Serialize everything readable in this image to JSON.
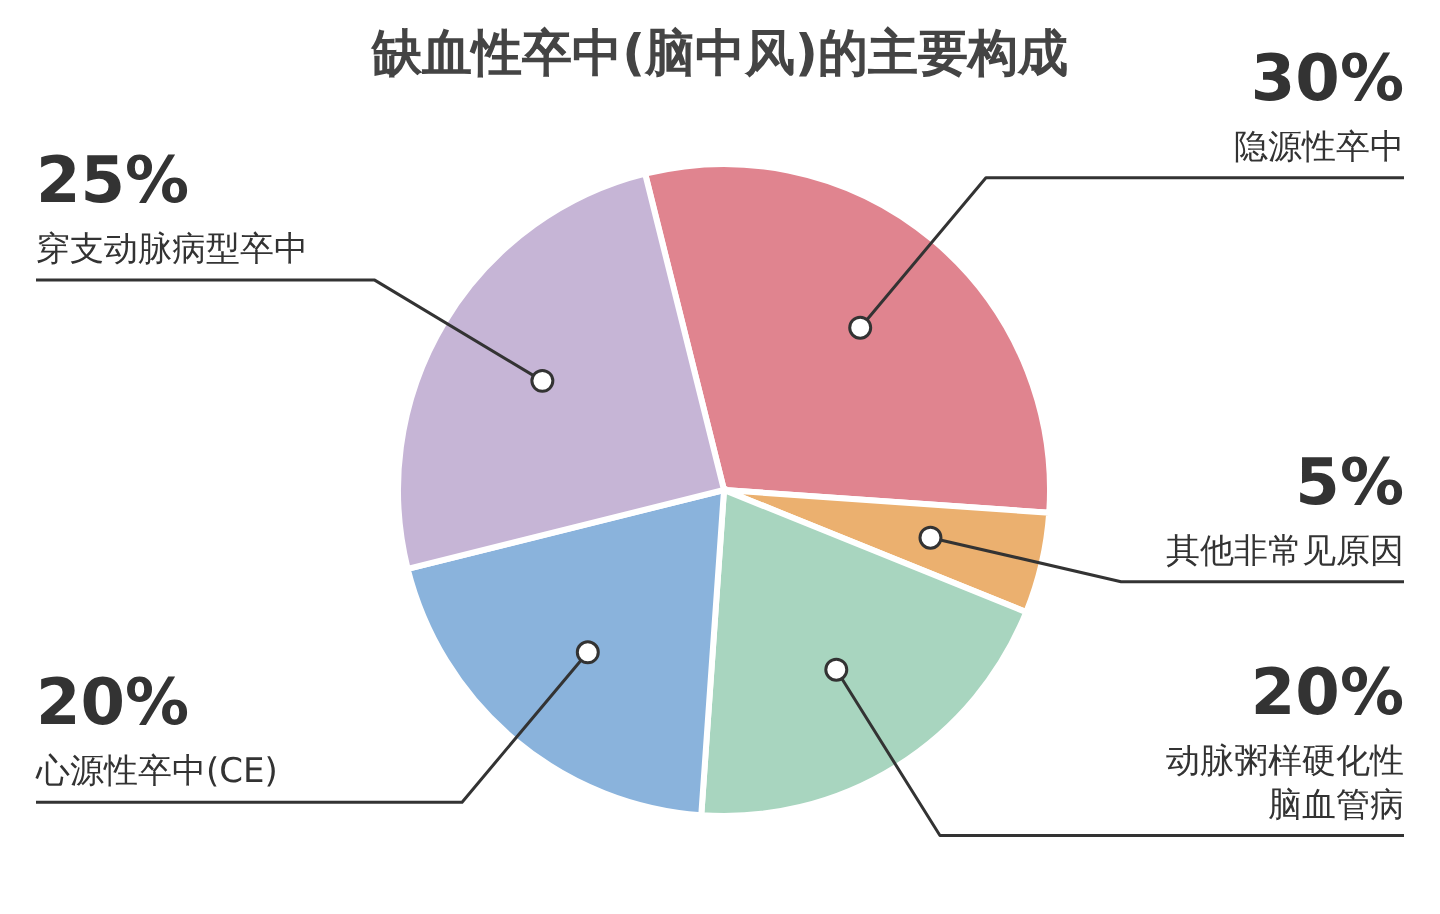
{
  "chart_data": {
    "type": "pie",
    "title": "缺血性卒中(脑中风)的主要构成",
    "categories": [
      "隐源性卒中",
      "其他非常见原因",
      "动脉粥样硬化性脑血管病",
      "心源性卒中(CE)",
      "穿支动脉病型卒中"
    ],
    "values": [
      30,
      5,
      20,
      20,
      25
    ],
    "value_labels": [
      "30%",
      "5%",
      "20%",
      "20%",
      "25%"
    ],
    "colors": [
      "#e0848f",
      "#ebb06f",
      "#a8d5bf",
      "#8ab3dc",
      "#c6b5d6"
    ],
    "legend": false
  }
}
